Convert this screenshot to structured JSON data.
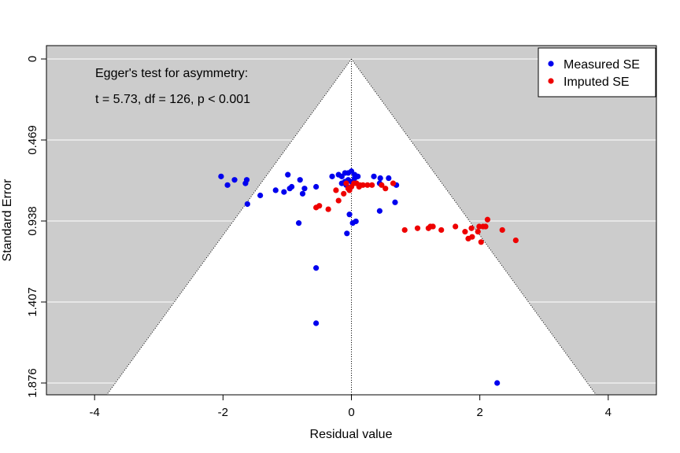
{
  "chart_data": {
    "type": "scatter",
    "title": "",
    "xlabel": "Residual value",
    "ylabel": "Standard Error",
    "xlim": [
      -4.75,
      4.75
    ],
    "ylim": [
      0,
      1.876
    ],
    "y_reversed": true,
    "x_ticks": [
      -4,
      -2,
      0,
      2,
      4
    ],
    "x_tick_labels": [
      "-4",
      "-2",
      "0",
      "2",
      "4"
    ],
    "y_ticks": [
      0,
      0.469,
      0.938,
      1.407,
      1.876
    ],
    "y_tick_labels": [
      "0",
      "0.469",
      "0.938",
      "1.407",
      "1.876"
    ],
    "background_color": "#cccccc",
    "funnel_color": "#ffffff",
    "funnel_z": 1.96,
    "grid": "horizontal",
    "annotations": [
      "Egger's test for asymmetry:",
      "t = 5.73, df = 126, p < 0.001"
    ],
    "legend": {
      "position": "top-right",
      "entries": [
        "Measured SE",
        "Imputed SE"
      ]
    },
    "series": [
      {
        "name": "Measured SE",
        "color": "#0000ee",
        "points": [
          [
            -2.03,
            0.68
          ],
          [
            -1.93,
            0.73
          ],
          [
            -1.82,
            0.7
          ],
          [
            -1.65,
            0.72
          ],
          [
            -1.63,
            0.7
          ],
          [
            -1.62,
            0.84
          ],
          [
            -1.42,
            0.79
          ],
          [
            -1.18,
            0.76
          ],
          [
            -1.05,
            0.77
          ],
          [
            -0.99,
            0.67
          ],
          [
            -0.96,
            0.75
          ],
          [
            -0.93,
            0.74
          ],
          [
            -0.8,
            0.7
          ],
          [
            -0.76,
            0.78
          ],
          [
            -0.73,
            0.75
          ],
          [
            -0.55,
            0.74
          ],
          [
            -0.82,
            0.95
          ],
          [
            -0.55,
            1.21
          ],
          [
            -0.55,
            1.53
          ],
          [
            -0.3,
            0.68
          ],
          [
            -0.2,
            0.67
          ],
          [
            -0.15,
            0.68
          ],
          [
            -0.1,
            0.66
          ],
          [
            -0.05,
            0.66
          ],
          [
            0.0,
            0.65
          ],
          [
            0.05,
            0.67
          ],
          [
            0.1,
            0.68
          ],
          [
            -0.15,
            0.72
          ],
          [
            -0.1,
            0.71
          ],
          [
            -0.05,
            0.7
          ],
          [
            0.0,
            0.71
          ],
          [
            0.05,
            0.69
          ],
          [
            -0.08,
            0.73
          ],
          [
            0.02,
            0.72
          ],
          [
            0.35,
            0.68
          ],
          [
            0.45,
            0.69
          ],
          [
            0.58,
            0.69
          ],
          [
            0.44,
            0.72
          ],
          [
            0.7,
            0.73
          ],
          [
            0.68,
            0.83
          ],
          [
            0.44,
            0.88
          ],
          [
            -0.03,
            0.9
          ],
          [
            0.02,
            0.95
          ],
          [
            0.07,
            0.94
          ],
          [
            -0.07,
            1.01
          ],
          [
            2.27,
            1.876
          ]
        ]
      },
      {
        "name": "Imputed SE",
        "color": "#ee0000",
        "points": [
          [
            -0.55,
            0.86
          ],
          [
            -0.5,
            0.85
          ],
          [
            -0.36,
            0.87
          ],
          [
            -0.2,
            0.82
          ],
          [
            -0.24,
            0.76
          ],
          [
            -0.12,
            0.78
          ],
          [
            -0.05,
            0.75
          ],
          [
            0.0,
            0.74
          ],
          [
            -0.03,
            0.76
          ],
          [
            0.04,
            0.72
          ],
          [
            0.08,
            0.72
          ],
          [
            0.13,
            0.73
          ],
          [
            0.18,
            0.73
          ],
          [
            0.25,
            0.73
          ],
          [
            0.32,
            0.73
          ],
          [
            0.47,
            0.73
          ],
          [
            0.53,
            0.75
          ],
          [
            0.65,
            0.72
          ],
          [
            -0.08,
            0.72
          ],
          [
            0.12,
            0.74
          ],
          [
            0.83,
            0.99
          ],
          [
            1.03,
            0.98
          ],
          [
            1.2,
            0.98
          ],
          [
            1.23,
            0.97
          ],
          [
            1.27,
            0.97
          ],
          [
            1.4,
            0.99
          ],
          [
            1.62,
            0.97
          ],
          [
            1.77,
            1.0
          ],
          [
            1.82,
            1.04
          ],
          [
            1.88,
            1.03
          ],
          [
            1.87,
            0.98
          ],
          [
            1.97,
            1.0
          ],
          [
            1.99,
            0.97
          ],
          [
            2.02,
            1.06
          ],
          [
            2.05,
            0.97
          ],
          [
            2.09,
            0.97
          ],
          [
            2.12,
            0.93
          ],
          [
            2.35,
            0.99
          ],
          [
            2.56,
            1.05
          ]
        ]
      }
    ]
  }
}
